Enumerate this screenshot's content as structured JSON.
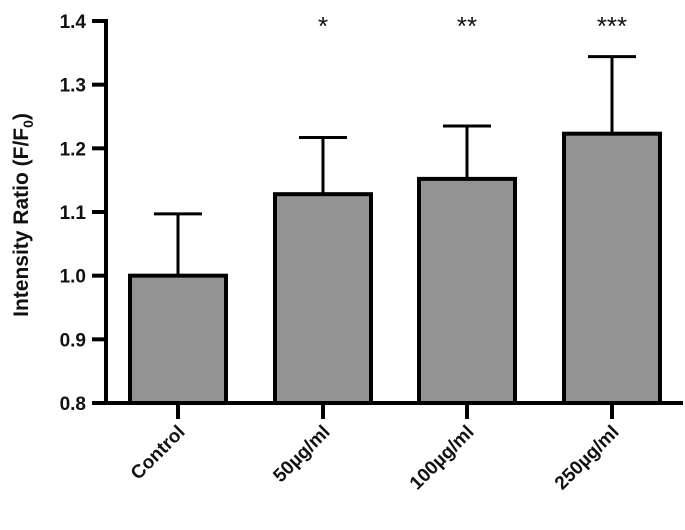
{
  "chart_data": {
    "type": "bar",
    "title": "",
    "xlabel": "",
    "ylabel": "Intensity Ratio (F/F0)",
    "ylabel_parts": {
      "main": "Intensity Ratio (F/F",
      "sub": "0",
      "end": ")"
    },
    "ylim": [
      0.8,
      1.4
    ],
    "yticks": [
      0.8,
      0.9,
      1.0,
      1.1,
      1.2,
      1.3,
      1.4
    ],
    "ytick_labels": [
      "0.8",
      "0.9",
      "1.0",
      "1.1",
      "1.2",
      "1.3",
      "1.4"
    ],
    "categories": [
      "Control",
      "50µg/ml",
      "100µg/ml",
      "250µg/ml"
    ],
    "values": [
      1.0,
      1.128,
      1.152,
      1.223
    ],
    "error_upper": [
      0.097,
      0.089,
      0.083,
      0.121
    ],
    "annotations": [
      "",
      "*",
      "**",
      "***"
    ],
    "grid": false,
    "bar_color": "#939393",
    "edge_color": "#000000"
  }
}
